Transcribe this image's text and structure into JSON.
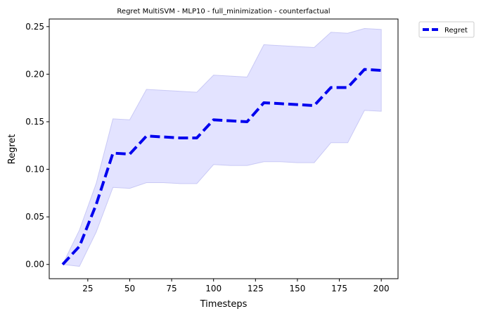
{
  "chart_data": {
    "type": "line",
    "title": "Regret MultiSVM - MLP10 - full_minimization - counterfactual",
    "xlabel": "Timesteps",
    "ylabel": "Regret",
    "xlim": [
      2,
      210
    ],
    "ylim": [
      -0.015,
      0.258
    ],
    "xticks": [
      25,
      50,
      75,
      100,
      125,
      150,
      175,
      200
    ],
    "yticks": [
      0.0,
      0.05,
      0.1,
      0.15,
      0.2,
      0.25
    ],
    "xtick_labels": [
      "25",
      "50",
      "75",
      "100",
      "125",
      "150",
      "175",
      "200"
    ],
    "ytick_labels": [
      "0.00",
      "0.05",
      "0.10",
      "0.15",
      "0.20",
      "0.25"
    ],
    "grid": false,
    "legend_position": "outside-top-right",
    "series": [
      {
        "name": "Regret",
        "color": "#0000ee",
        "line_style": "dashed",
        "x": [
          10,
          20,
          30,
          40,
          50,
          60,
          70,
          80,
          90,
          100,
          110,
          120,
          130,
          140,
          150,
          160,
          170,
          180,
          190,
          200
        ],
        "y": [
          0.0,
          0.019,
          0.063,
          0.117,
          0.116,
          0.135,
          0.134,
          0.133,
          0.133,
          0.152,
          0.151,
          0.15,
          0.17,
          0.169,
          0.168,
          0.167,
          0.186,
          0.186,
          0.205,
          0.204
        ],
        "band_upper": [
          0.0,
          0.036,
          0.085,
          0.153,
          0.152,
          0.184,
          0.183,
          0.182,
          0.181,
          0.199,
          0.198,
          0.197,
          0.231,
          0.23,
          0.229,
          0.228,
          0.244,
          0.243,
          0.248,
          0.247
        ],
        "band_lower": [
          0.0,
          -0.002,
          0.034,
          0.081,
          0.08,
          0.086,
          0.086,
          0.085,
          0.085,
          0.105,
          0.104,
          0.104,
          0.108,
          0.108,
          0.107,
          0.107,
          0.128,
          0.128,
          0.162,
          0.161
        ],
        "band_fill": "#e3e3ff",
        "band_edge": "#c9c9f5"
      }
    ]
  }
}
